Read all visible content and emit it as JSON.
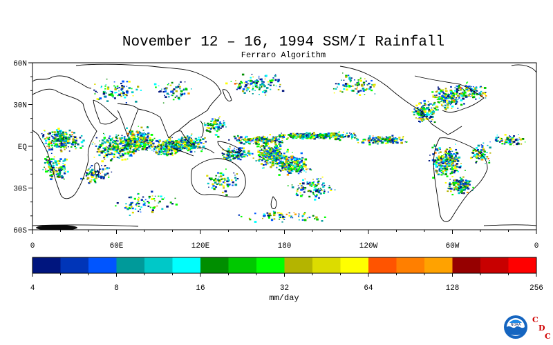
{
  "chart_data": {
    "type": "heatmap",
    "title": "November 12 – 16, 1994 SSM/I Rainfall",
    "subtitle": "Ferraro Algorithm",
    "lat_ticks": [
      "60N",
      "30N",
      "EQ",
      "30S",
      "60S"
    ],
    "lon_ticks": [
      "0",
      "60E",
      "120E",
      "180",
      "120W",
      "60W",
      "0"
    ],
    "lat_range": [
      -60,
      60
    ],
    "lon_range": [
      0,
      360
    ],
    "colorbar": {
      "label": "mm/day",
      "scale": "log2",
      "tick_labels": [
        "4",
        "8",
        "16",
        "32",
        "64",
        "128",
        "256"
      ],
      "colors": [
        "#00157e",
        "#0035b8",
        "#0055ff",
        "#009a9a",
        "#00c8c8",
        "#00ffff",
        "#008e00",
        "#00c800",
        "#00ff00",
        "#b4b400",
        "#dcdc00",
        "#ffff00",
        "#ff5400",
        "#ff7f00",
        "#ffa200",
        "#960000",
        "#c80000",
        "#ff0000"
      ]
    }
  },
  "logo": {
    "emblem_text": "NOAA",
    "letters": [
      "C",
      "D",
      "C"
    ]
  }
}
